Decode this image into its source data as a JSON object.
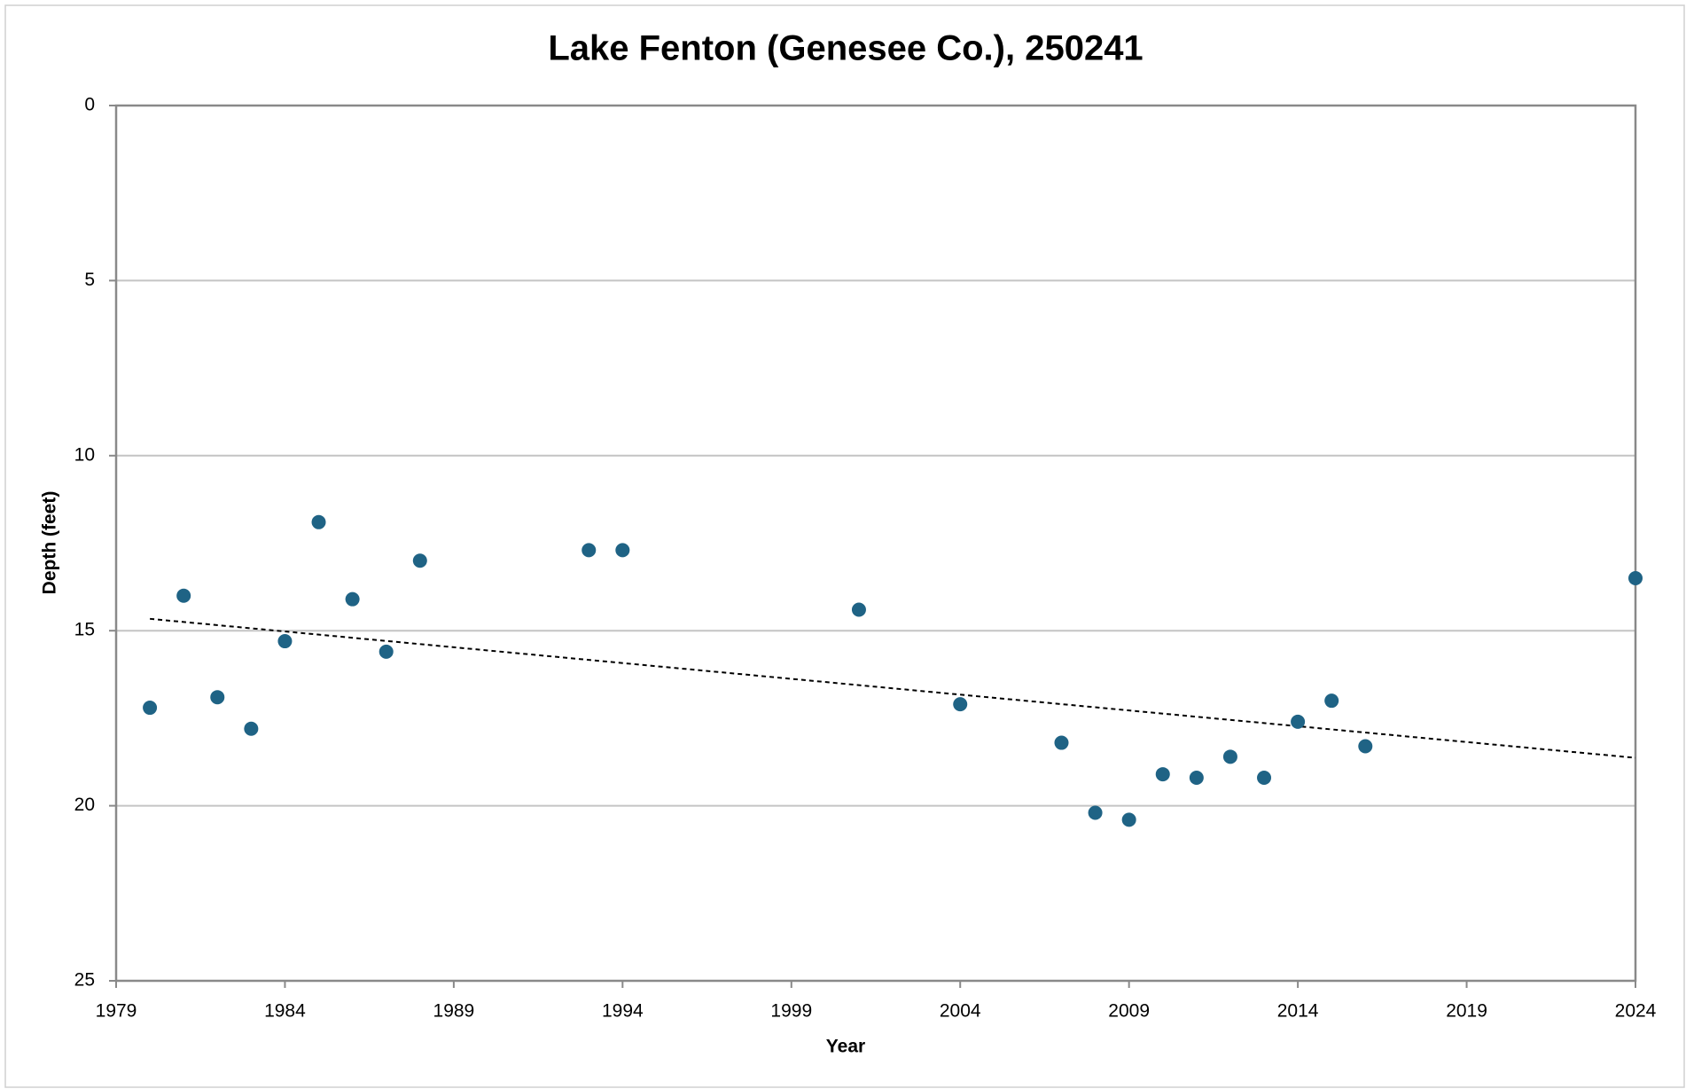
{
  "chart_data": {
    "type": "scatter",
    "title": "Lake Fenton (Genesee Co.), 250241",
    "x_label": "Year",
    "y_label": "Depth (feet)",
    "x": [
      1980,
      1981,
      1982,
      1983,
      1984,
      1985,
      1986,
      1987,
      1988,
      1993,
      1994,
      2001,
      2004,
      2007,
      2008,
      2009,
      2010,
      2011,
      2012,
      2013,
      2014,
      2015,
      2016,
      2024
    ],
    "values": [
      17.2,
      14.0,
      16.9,
      17.8,
      15.3,
      11.9,
      14.1,
      15.6,
      13.0,
      12.7,
      12.7,
      14.4,
      17.1,
      18.2,
      20.2,
      20.4,
      19.1,
      19.2,
      18.6,
      19.2,
      17.6,
      17.0,
      18.3,
      13.5
    ],
    "color": "#1f6385",
    "xlim": [
      1979,
      2024
    ],
    "xticks": [
      1979,
      1984,
      1989,
      1994,
      1999,
      2004,
      2009,
      2014,
      2019,
      2024
    ],
    "ylim": [
      0,
      25
    ],
    "yticks": [
      0,
      5,
      10,
      15,
      20,
      25
    ],
    "y_inverted": true,
    "grid": true,
    "trendline": "linear"
  }
}
